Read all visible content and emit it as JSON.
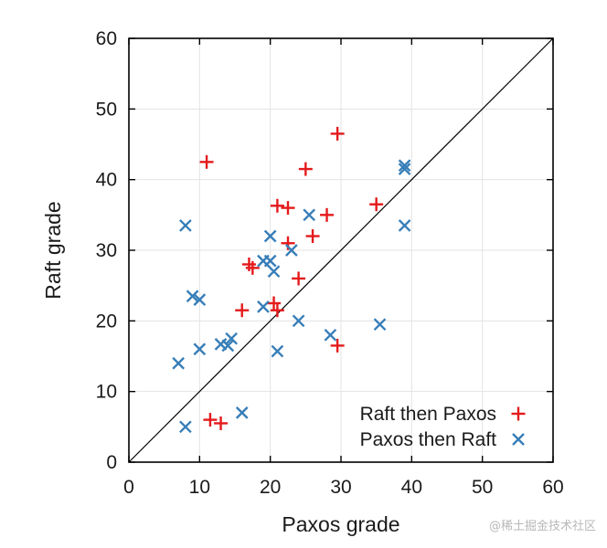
{
  "chart_data": {
    "type": "scatter",
    "xlabel": "Paxos grade",
    "ylabel": "Raft grade",
    "xlim": [
      0,
      60
    ],
    "ylim": [
      0,
      60
    ],
    "xticks": [
      0,
      10,
      20,
      30,
      40,
      50,
      60
    ],
    "yticks": [
      0,
      10,
      20,
      30,
      40,
      50,
      60
    ],
    "grid": true,
    "diagonal_reference_line": true,
    "legend_position": "bottom-right",
    "series": [
      {
        "name": "Raft then Paxos",
        "marker": "plus",
        "color": "#e41a1c",
        "points": [
          [
            11,
            42.5
          ],
          [
            29.5,
            46.5
          ],
          [
            25,
            41.5
          ],
          [
            21,
            36.3
          ],
          [
            22.5,
            36
          ],
          [
            28,
            35
          ],
          [
            35,
            36.5
          ],
          [
            26,
            32
          ],
          [
            22.5,
            31
          ],
          [
            17,
            28
          ],
          [
            17.5,
            27.5
          ],
          [
            24,
            26
          ],
          [
            16,
            21.5
          ],
          [
            20.5,
            22.5
          ],
          [
            21,
            21.5
          ],
          [
            29.5,
            16.5
          ],
          [
            11.5,
            6
          ],
          [
            13,
            5.5
          ]
        ]
      },
      {
        "name": "Paxos then Raft",
        "marker": "x",
        "color": "#377eb8",
        "points": [
          [
            39,
            42
          ],
          [
            39,
            41.5
          ],
          [
            25.5,
            35
          ],
          [
            39,
            33.5
          ],
          [
            8,
            33.5
          ],
          [
            20,
            32
          ],
          [
            23,
            30
          ],
          [
            19,
            28.5
          ],
          [
            20,
            28.5
          ],
          [
            20.5,
            27
          ],
          [
            9,
            23.5
          ],
          [
            10,
            23
          ],
          [
            19,
            22
          ],
          [
            24,
            20
          ],
          [
            35.5,
            19.5
          ],
          [
            28.5,
            18
          ],
          [
            14.5,
            17.5
          ],
          [
            13,
            16.7
          ],
          [
            14,
            16.5
          ],
          [
            10,
            16
          ],
          [
            21,
            15.7
          ],
          [
            7,
            14
          ],
          [
            16,
            7
          ],
          [
            8,
            5
          ]
        ]
      }
    ]
  },
  "watermark": "@稀土掘金技术社区"
}
